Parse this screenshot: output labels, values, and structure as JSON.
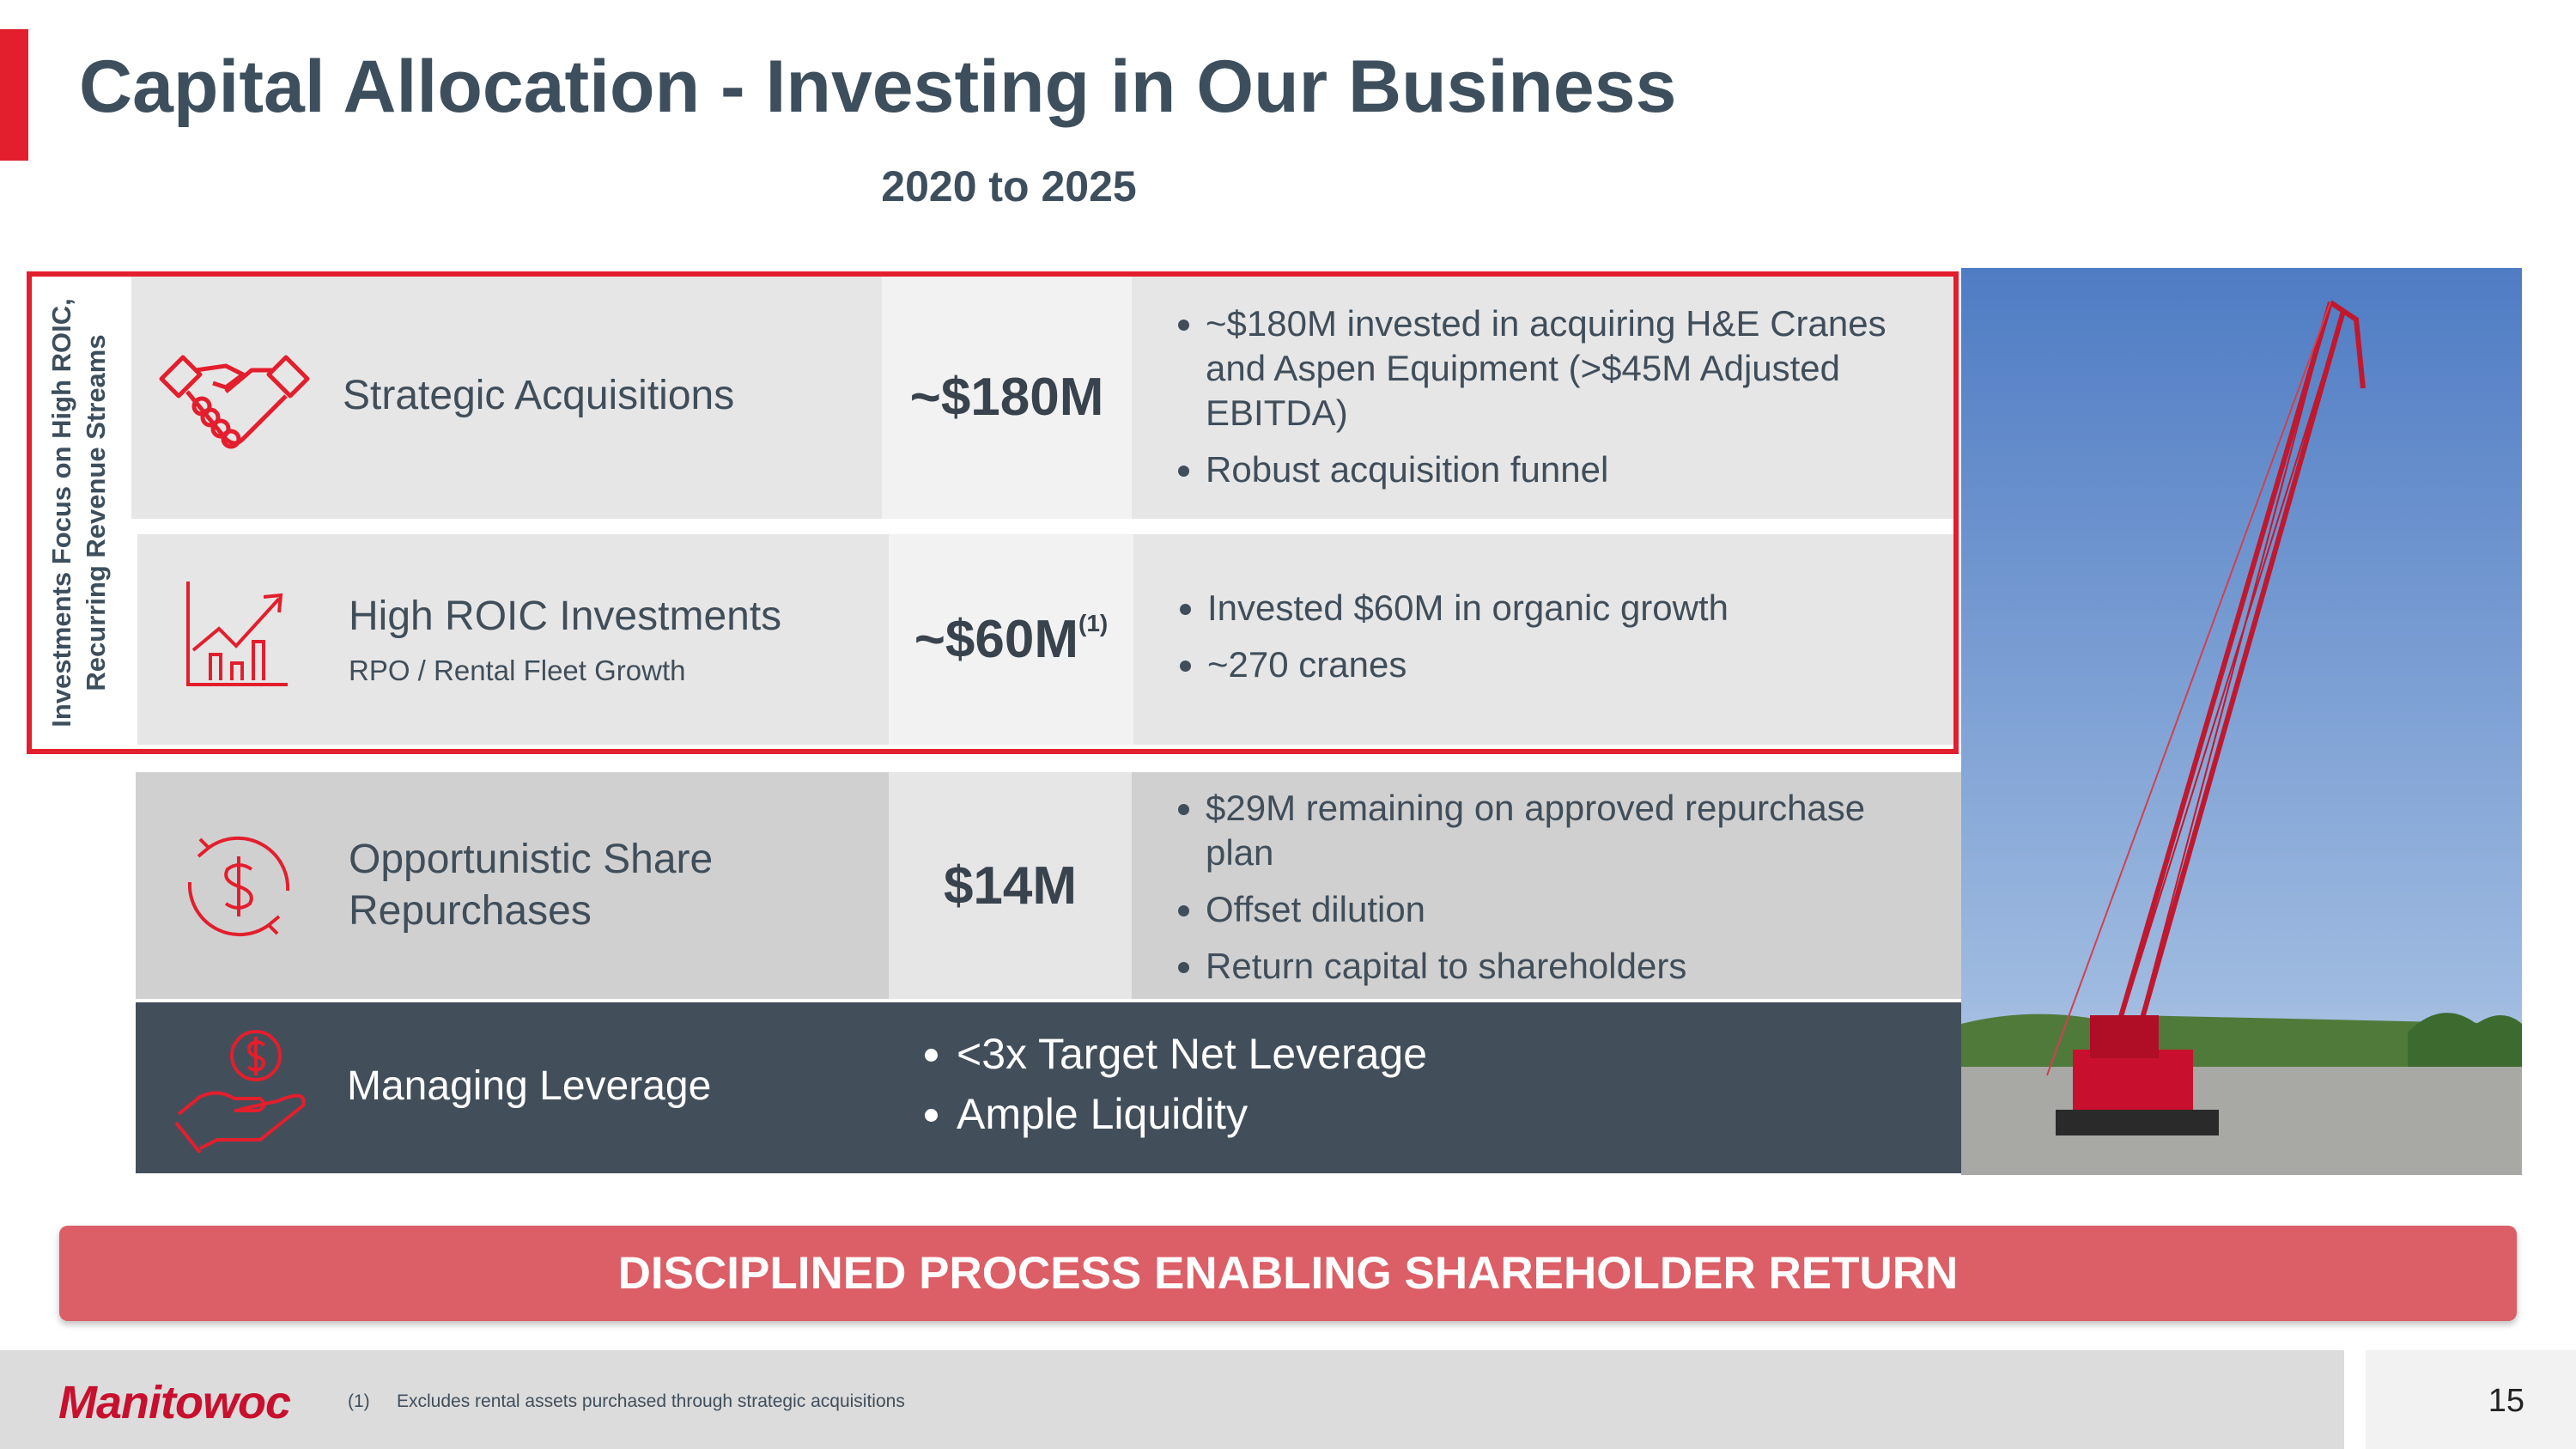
{
  "header": {
    "title": "Capital Allocation - Investing in Our Business",
    "subtitle": "2020 to 2025"
  },
  "side_label": [
    "Investments Focus on High ROIC,",
    "Recurring Revenue Streams"
  ],
  "rows": [
    {
      "label": "Strategic Acquisitions",
      "amount": "~$180M",
      "bullets": [
        "~$180M invested in acquiring H&E Cranes and Aspen Equipment (>$45M Adjusted EBITDA)",
        "Robust acquisition funnel"
      ]
    },
    {
      "label": "High ROIC Investments",
      "sublabel": "RPO / Rental Fleet Growth",
      "amount": "~$60M",
      "amount_note": "(1)",
      "bullets": [
        "Invested $60M in organic growth",
        "~270 cranes"
      ]
    },
    {
      "label": "Opportunistic Share Repurchases",
      "amount": "$14M",
      "bullets": [
        "$29M remaining on approved repurchase plan",
        "Offset dilution",
        "Return capital to shareholders"
      ]
    }
  ],
  "leverage": {
    "label": "Managing Leverage",
    "bullets": [
      "<3x Target Net Leverage",
      "Ample Liquidity"
    ]
  },
  "banner": "DISCIPLINED PROCESS ENABLING SHAREHOLDER RETURN",
  "footer": {
    "logo": "Manitowoc",
    "note_marker": "(1)",
    "note": "Excludes rental assets purchased through strategic acquisitions",
    "page": "15"
  }
}
